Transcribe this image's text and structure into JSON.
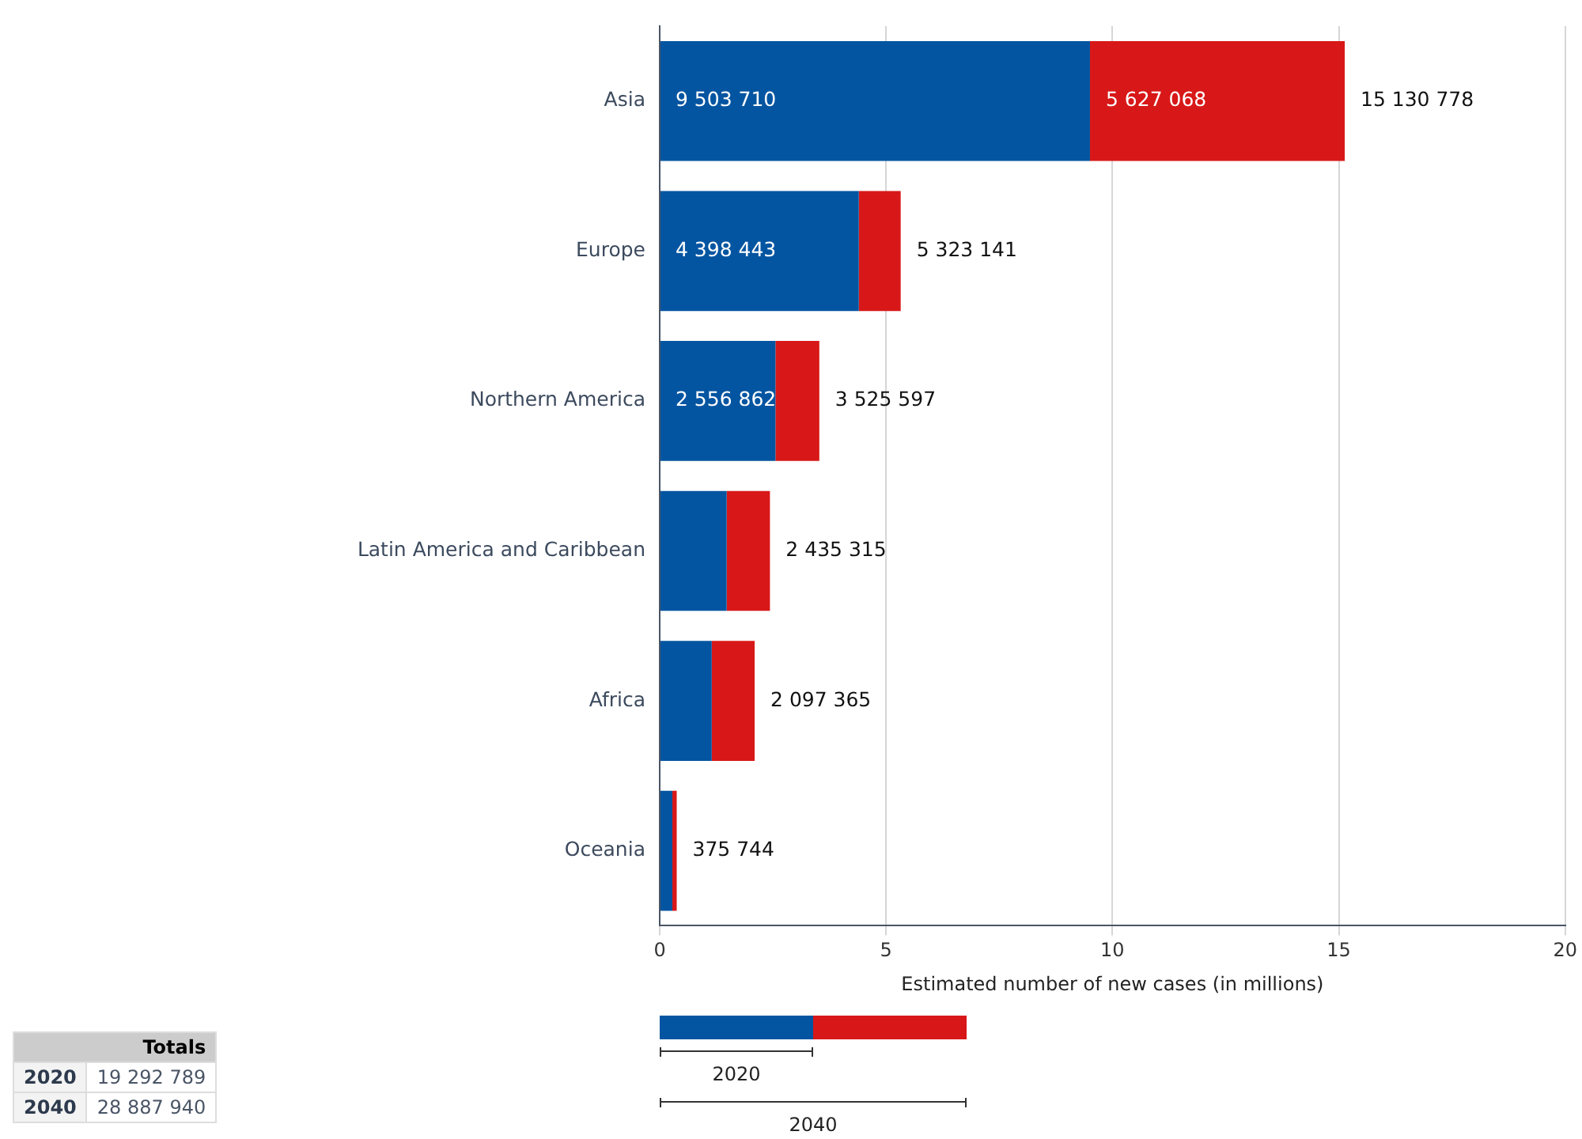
{
  "chart_data": {
    "type": "bar",
    "orientation": "horizontal",
    "stacked": true,
    "xlabel": "Estimated number of new cases (in millions)",
    "categories": [
      "Asia",
      "Europe",
      "Northern America",
      "Latin America and Caribbean",
      "Africa",
      "Oceania"
    ],
    "series": [
      {
        "name": "2020",
        "color": "#0455a1",
        "values": [
          9.504,
          4.398,
          2.557,
          1.48,
          1.15,
          0.28
        ]
      },
      {
        "name": "2040",
        "color": "#d81818",
        "values": [
          5.627,
          0.925,
          0.969,
          0.955,
          0.947,
          0.096
        ]
      }
    ],
    "xlim": [
      0,
      20
    ],
    "xticks": [
      0,
      5,
      10,
      15,
      20
    ],
    "grid": "x",
    "legend": "bottom",
    "annotations": [
      {
        "text": "9 503 710",
        "x": 0,
        "y": "Asia"
      },
      {
        "text": "5 627 068",
        "x": 9.504,
        "y": "Asia"
      },
      {
        "text": "4 398 443",
        "x": 0,
        "y": "Europe"
      },
      {
        "text": "2 556 862",
        "x": 0,
        "y": "Northern America"
      },
      {
        "text": "15 130 778",
        "x": 15.131,
        "y": "Asia"
      },
      {
        "text": "5 323 141",
        "x": 5.323,
        "y": "Europe"
      },
      {
        "text": "3 525 597",
        "x": 3.526,
        "y": "Northern America"
      },
      {
        "text": "2 435 315",
        "x": 2.435,
        "y": "Latin America and Caribbean"
      },
      {
        "text": "2 097 365",
        "x": 2.097,
        "y": "Africa"
      },
      {
        "text": "375 744",
        "x": 0.376,
        "y": "Oceania"
      },
      "Totals",
      "2020",
      "19 292 789",
      "2040",
      "28 887 940"
    ]
  }
}
